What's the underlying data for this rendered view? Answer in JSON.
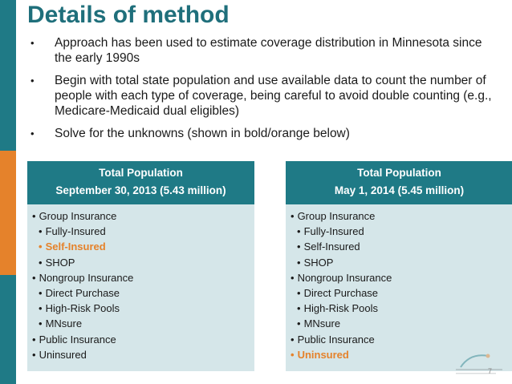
{
  "colors": {
    "accent_teal": "#1f7a86",
    "accent_orange": "#e5822b",
    "panel_bg": "#d5e6e9"
  },
  "title": "Details of method",
  "bullets": [
    "Approach has been used to estimate coverage distribution in Minnesota since the early 1990s",
    "Begin with total state population and use available data to count the number of people with each type of coverage, being careful to avoid double counting (e.g., Medicare-Medicaid dual eligibles)",
    "Solve for the unknowns (shown in bold/orange below)"
  ],
  "left_panel": {
    "line1": "Total Population",
    "line2": "September 30, 2013 (5.43 million)",
    "items": [
      {
        "label": "Group Insurance",
        "level": 1,
        "highlight": false
      },
      {
        "label": "Fully-Insured",
        "level": 2,
        "highlight": false
      },
      {
        "label": "Self-Insured",
        "level": 2,
        "highlight": true
      },
      {
        "label": "SHOP",
        "level": 2,
        "highlight": false
      },
      {
        "label": "Nongroup Insurance",
        "level": 1,
        "highlight": false
      },
      {
        "label": "Direct Purchase",
        "level": 2,
        "highlight": false
      },
      {
        "label": "High-Risk Pools",
        "level": 2,
        "highlight": false
      },
      {
        "label": "MNsure",
        "level": 2,
        "highlight": false
      },
      {
        "label": "Public Insurance",
        "level": 1,
        "highlight": false
      },
      {
        "label": "Uninsured",
        "level": 1,
        "highlight": false
      }
    ]
  },
  "right_panel": {
    "line1": "Total Population",
    "line2": "May 1, 2014 (5.45 million)",
    "items": [
      {
        "label": "Group Insurance",
        "level": 1,
        "highlight": false
      },
      {
        "label": "Fully-Insured",
        "level": 2,
        "highlight": false
      },
      {
        "label": "Self-Insured",
        "level": 2,
        "highlight": false
      },
      {
        "label": "SHOP",
        "level": 2,
        "highlight": false
      },
      {
        "label": "Nongroup Insurance",
        "level": 1,
        "highlight": false
      },
      {
        "label": "Direct Purchase",
        "level": 2,
        "highlight": false
      },
      {
        "label": "High-Risk Pools",
        "level": 2,
        "highlight": false
      },
      {
        "label": "MNsure",
        "level": 2,
        "highlight": false
      },
      {
        "label": "Public Insurance",
        "level": 1,
        "highlight": false
      },
      {
        "label": "Uninsured",
        "level": 1,
        "highlight": true
      }
    ]
  },
  "page_number": "7",
  "logo": {
    "icon": "shadac-logo-icon",
    "text": "shadac"
  }
}
